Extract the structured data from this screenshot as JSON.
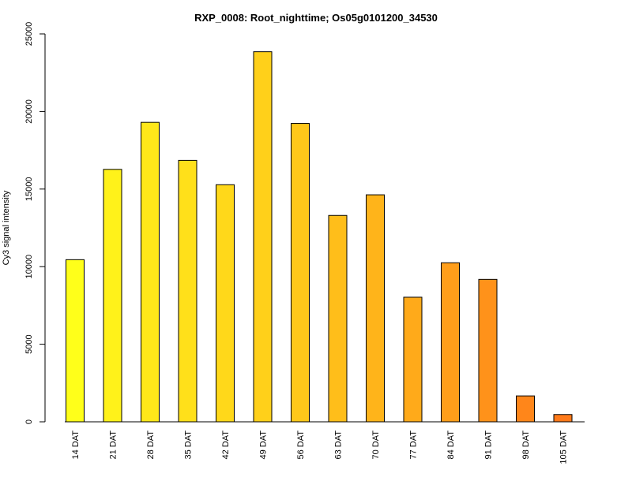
{
  "chart_data": {
    "type": "bar",
    "title": "RXP_0008: Root_nighttime; Os05g0101200_34530",
    "xlabel": "",
    "ylabel": "Cy3 signal intensity",
    "ylim": [
      0,
      25000
    ],
    "yticks": [
      "0",
      "5000",
      "10000",
      "15000",
      "20000",
      "25000"
    ],
    "grid": false,
    "categories": [
      "14 DAT",
      "21 DAT",
      "28 DAT",
      "35 DAT",
      "42 DAT",
      "49 DAT",
      "56 DAT",
      "63 DAT",
      "70 DAT",
      "77 DAT",
      "84 DAT",
      "91 DAT",
      "98 DAT",
      "105 DAT"
    ],
    "values": [
      10450,
      16270,
      19300,
      16850,
      15280,
      23850,
      19230,
      13300,
      14630,
      8030,
      10250,
      9180,
      1670,
      470
    ],
    "colors": [
      "#FFFF1A",
      "#FFF21A",
      "#FFE81A",
      "#FFE01A",
      "#FFD81A",
      "#FFD01A",
      "#FFC81A",
      "#FFBE1A",
      "#FFB41A",
      "#FFAA1A",
      "#FF9E1A",
      "#FF921A",
      "#FF861A",
      "#FF7A1A"
    ]
  }
}
